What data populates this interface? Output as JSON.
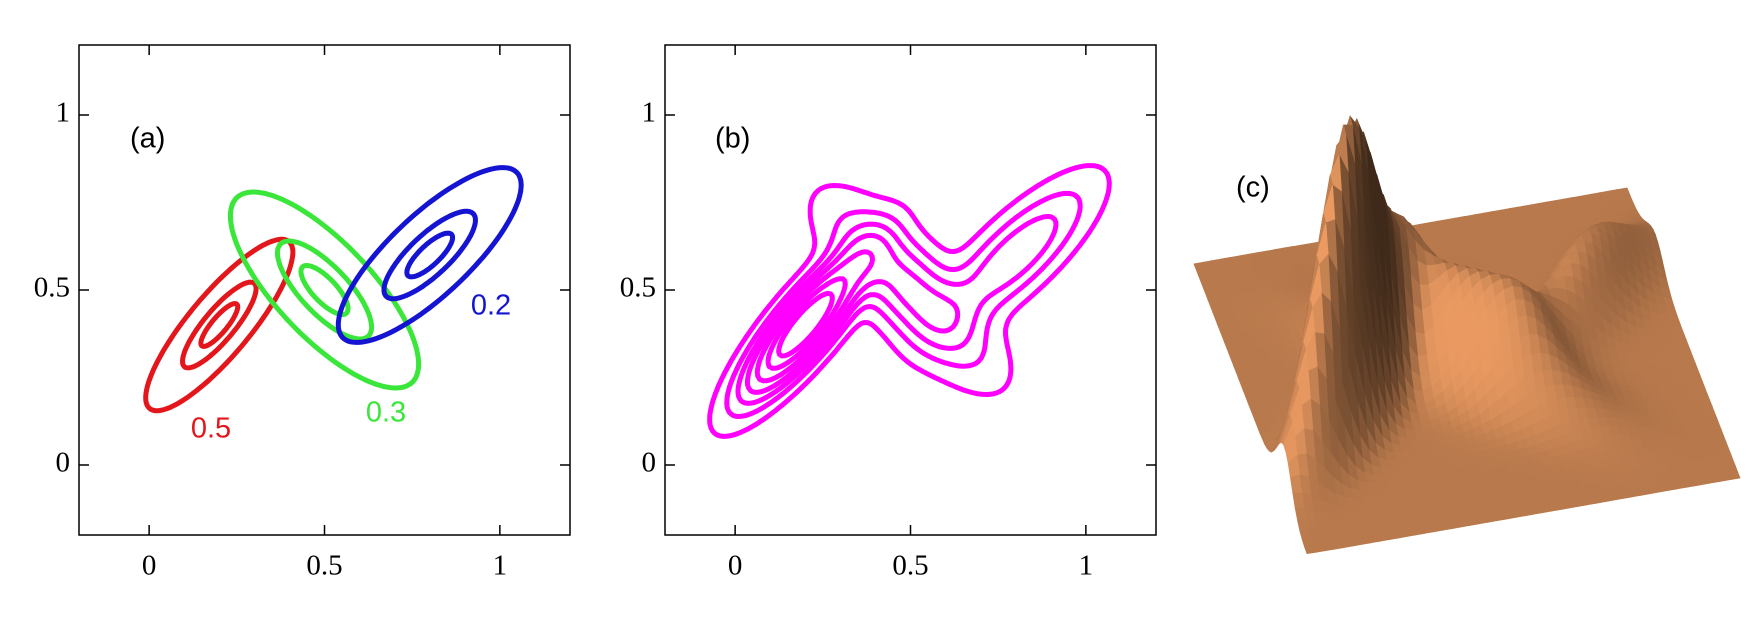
{
  "chart_data": [
    {
      "type": "contour",
      "annotation": "(a)",
      "xlim": [
        -0.2,
        1.2
      ],
      "ylim": [
        -0.2,
        1.2
      ],
      "xticks": [
        0,
        0.5,
        1
      ],
      "yticks": [
        0,
        0.5,
        1
      ],
      "levels": [
        0.5,
        1,
        2
      ],
      "series": [
        {
          "name": "0.5",
          "color": "#e3161b",
          "weight": 0.5,
          "mean": [
            0.2,
            0.4
          ],
          "cov": [
            [
              0.011,
              0.0109
            ],
            [
              0.0109,
              0.015
            ]
          ]
        },
        {
          "name": "0.3",
          "color": "#3ae63a",
          "weight": 0.3,
          "mean": [
            0.5,
            0.5
          ],
          "cov": [
            [
              0.018,
              -0.0142
            ],
            [
              -0.0142,
              0.0196
            ]
          ]
        },
        {
          "name": "0.2",
          "color": "#1414d2",
          "weight": 0.2,
          "mean": [
            0.8,
            0.6
          ],
          "cov": [
            [
              0.017,
              0.013
            ],
            [
              0.013,
              0.0156
            ]
          ]
        }
      ]
    },
    {
      "type": "contour",
      "annotation": "(b)",
      "xlim": [
        -0.2,
        1.2
      ],
      "ylim": [
        -0.2,
        1.2
      ],
      "xticks": [
        0,
        0.5,
        1
      ],
      "yticks": [
        0,
        0.5,
        1
      ],
      "color": "#ff00ff",
      "levels": [
        0.4,
        1.2,
        2.2,
        3.4,
        5,
        7,
        9
      ],
      "components": [
        {
          "weight": 0.5,
          "mean": [
            0.2,
            0.4
          ],
          "cov": [
            [
              0.011,
              0.0109
            ],
            [
              0.0109,
              0.015
            ]
          ]
        },
        {
          "weight": 0.3,
          "mean": [
            0.5,
            0.5
          ],
          "cov": [
            [
              0.018,
              -0.0142
            ],
            [
              -0.0142,
              0.0196
            ]
          ]
        },
        {
          "weight": 0.2,
          "mean": [
            0.8,
            0.6
          ],
          "cov": [
            [
              0.017,
              0.013
            ],
            [
              0.013,
              0.0156
            ]
          ]
        }
      ]
    },
    {
      "type": "surface",
      "annotation": "(c)",
      "color": "#cd8755",
      "xlim": [
        0,
        1
      ],
      "ylim": [
        0,
        1
      ],
      "components": [
        {
          "weight": 0.5,
          "mean": [
            0.2,
            0.4
          ],
          "cov": [
            [
              0.011,
              0.0109
            ],
            [
              0.0109,
              0.015
            ]
          ]
        },
        {
          "weight": 0.3,
          "mean": [
            0.5,
            0.5
          ],
          "cov": [
            [
              0.018,
              -0.0142
            ],
            [
              -0.0142,
              0.0196
            ]
          ]
        },
        {
          "weight": 0.2,
          "mean": [
            0.8,
            0.6
          ],
          "cov": [
            [
              0.017,
              0.013
            ],
            [
              0.013,
              0.0156
            ]
          ]
        }
      ]
    }
  ]
}
